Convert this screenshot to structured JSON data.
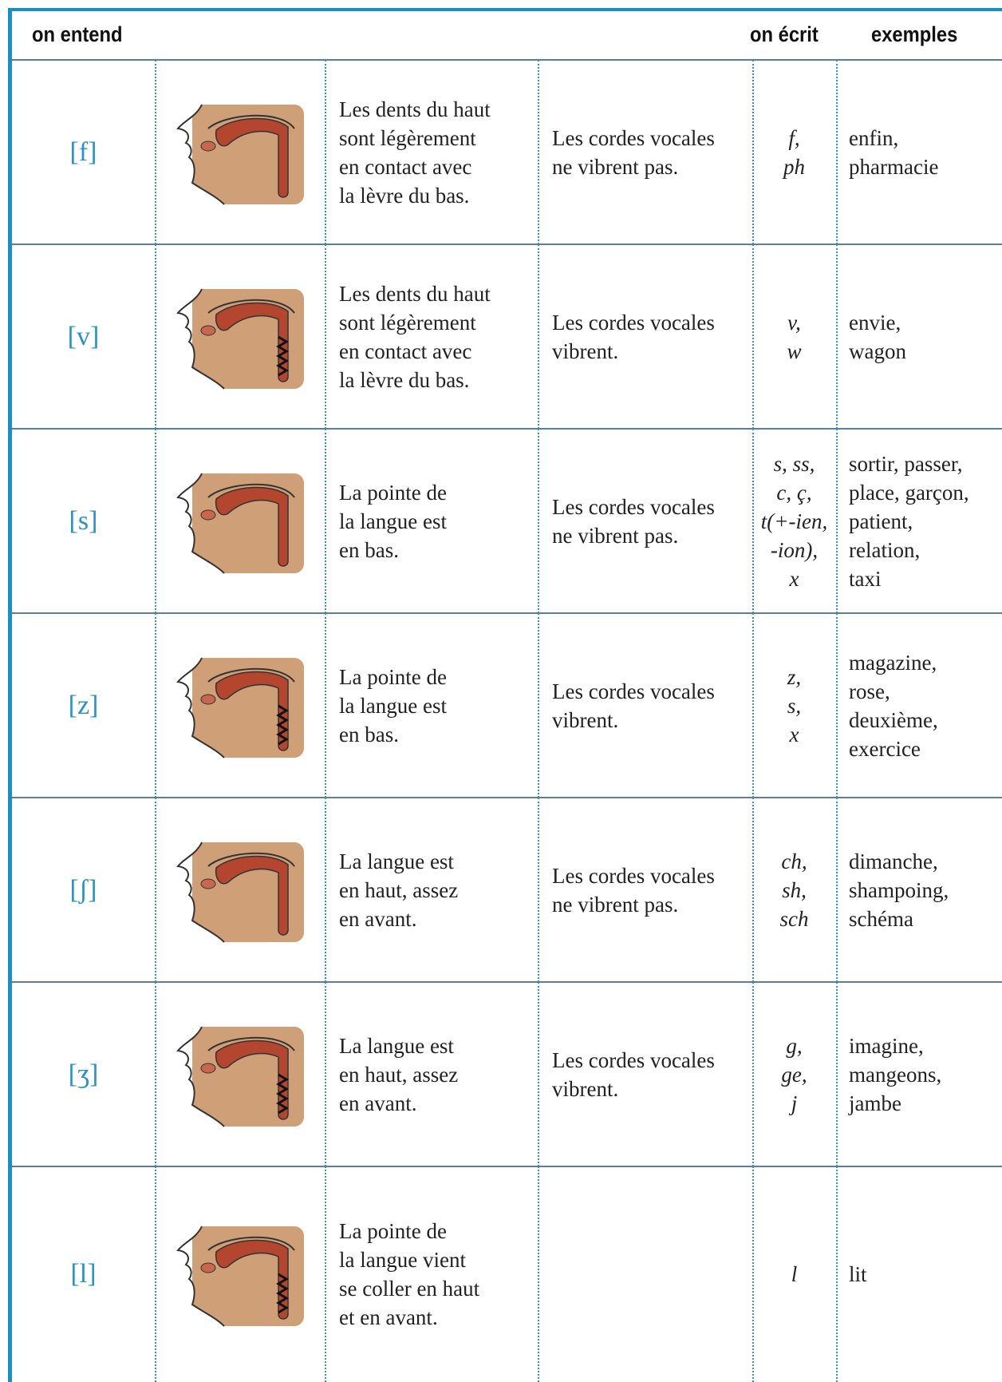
{
  "header": {
    "sound": "on entend",
    "spelling": "on écrit",
    "examples": "exemples"
  },
  "rows": [
    {
      "sound": "[f]",
      "articulation": [
        "Les dents du haut",
        "sont légèrement",
        "en contact avec",
        "la lèvre du bas."
      ],
      "vocal_cords": [
        "Les cordes vocales",
        "ne vibrent pas."
      ],
      "spellings": [
        "f,",
        "ph"
      ],
      "examples": [
        "enfin,",
        "pharmacie"
      ]
    },
    {
      "sound": "[v]",
      "articulation": [
        "Les dents du haut",
        "sont légèrement",
        "en contact avec",
        "la lèvre du bas."
      ],
      "vocal_cords": [
        "Les cordes vocales",
        "vibrent."
      ],
      "spellings": [
        "v,",
        "w"
      ],
      "examples": [
        "envie,",
        "wagon"
      ]
    },
    {
      "sound": "[s]",
      "articulation": [
        "La pointe de",
        "la langue est",
        "en bas."
      ],
      "vocal_cords": [
        "Les cordes vocales",
        "ne vibrent pas."
      ],
      "spellings": [
        "s, ss,",
        "c, ç,",
        "t(+-ien,",
        "-ion),",
        "x"
      ],
      "examples": [
        "sortir, passer,",
        "place, garçon,",
        "patient,",
        "relation,",
        "taxi"
      ]
    },
    {
      "sound": "[z]",
      "articulation": [
        "La pointe de",
        "la langue est",
        "en bas."
      ],
      "vocal_cords": [
        "Les cordes vocales",
        "vibrent."
      ],
      "spellings": [
        "z,",
        "s,",
        "x"
      ],
      "examples": [
        "magazine,",
        "rose,",
        "deuxième,",
        "exercice"
      ]
    },
    {
      "sound": "[ʃ]",
      "articulation": [
        "La langue est",
        "en haut, assez",
        "en avant."
      ],
      "vocal_cords": [
        "Les cordes vocales",
        "ne vibrent pas."
      ],
      "spellings": [
        "ch,",
        "sh,",
        "sch"
      ],
      "examples": [
        "dimanche,",
        "shampoing,",
        "schéma"
      ]
    },
    {
      "sound": "[ʒ]",
      "articulation": [
        "La langue est",
        "en haut, assez",
        "en avant."
      ],
      "vocal_cords": [
        "Les cordes vocales",
        "vibrent."
      ],
      "spellings": [
        "g,",
        "ge,",
        "j"
      ],
      "examples": [
        "imagine,",
        "mangeons,",
        "jambe"
      ]
    },
    {
      "sound": "[l]",
      "articulation": [
        "La pointe de",
        "la langue vient",
        "se coller en haut",
        "et en avant."
      ],
      "spellings": [
        "l"
      ],
      "examples": [
        "lit"
      ]
    }
  ]
}
